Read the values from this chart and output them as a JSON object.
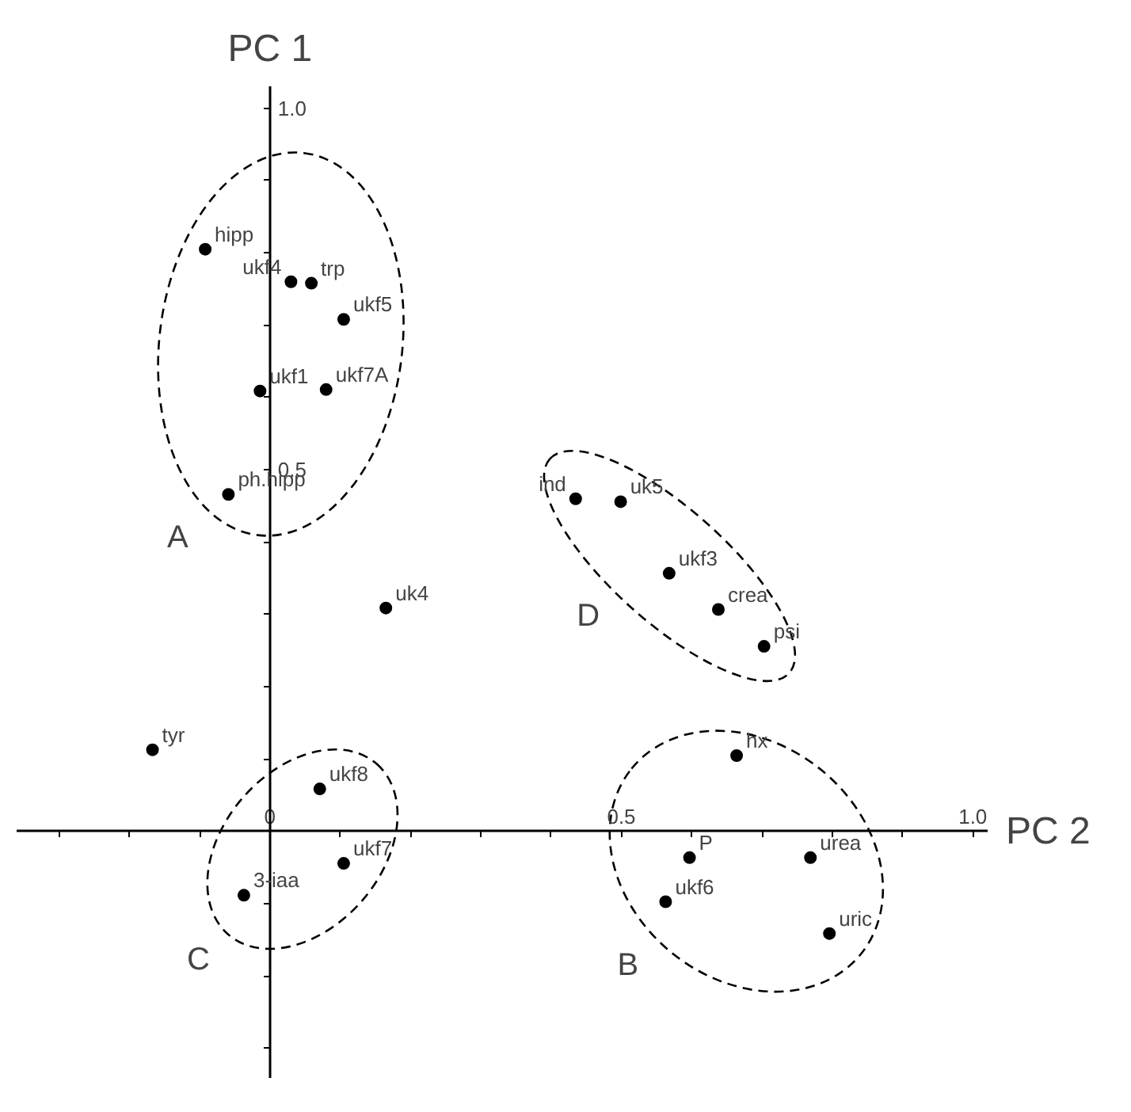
{
  "chart_data": {
    "type": "scatter",
    "xlabel": "PC 2",
    "ylabel": "PC 1",
    "marker": "circle",
    "xlim": [
      -0.36,
      1.02
    ],
    "ylim": [
      -0.34,
      1.03
    ],
    "xticks": [
      {
        "value": -0.3,
        "label": null
      },
      {
        "value": -0.2,
        "label": null
      },
      {
        "value": -0.1,
        "label": null
      },
      {
        "value": 0,
        "label": "0"
      },
      {
        "value": 0.1,
        "label": null
      },
      {
        "value": 0.2,
        "label": null
      },
      {
        "value": 0.3,
        "label": null
      },
      {
        "value": 0.4,
        "label": null
      },
      {
        "value": 0.5,
        "label": "0.5"
      },
      {
        "value": 0.6,
        "label": null
      },
      {
        "value": 0.7,
        "label": null
      },
      {
        "value": 0.8,
        "label": null
      },
      {
        "value": 0.9,
        "label": null
      },
      {
        "value": 1.0,
        "label": "1.0"
      }
    ],
    "yticks": [
      {
        "value": -0.3,
        "label": null
      },
      {
        "value": -0.2,
        "label": null
      },
      {
        "value": -0.1,
        "label": null
      },
      {
        "value": 0.1,
        "label": null
      },
      {
        "value": 0.2,
        "label": null
      },
      {
        "value": 0.3,
        "label": null
      },
      {
        "value": 0.4,
        "label": null
      },
      {
        "value": 0.5,
        "label": "0.5"
      },
      {
        "value": 0.6,
        "label": null
      },
      {
        "value": 0.7,
        "label": null
      },
      {
        "value": 0.8,
        "label": null
      },
      {
        "value": 0.9,
        "label": null
      },
      {
        "value": 1.0,
        "label": "1.0"
      }
    ],
    "grid": false,
    "series": [
      {
        "name": "A",
        "color": "#000000",
        "x": [
          -0.092,
          0.03,
          0.059,
          0.105,
          -0.014,
          0.08,
          -0.059
        ],
        "values": [
          0.805,
          0.76,
          0.758,
          0.708,
          0.609,
          0.611,
          0.466
        ]
      },
      {
        "name": "B",
        "color": "#000000",
        "x": [
          0.664,
          0.597,
          0.769,
          0.563,
          0.796
        ],
        "values": [
          0.105,
          -0.036,
          -0.036,
          -0.097,
          -0.141
        ]
      },
      {
        "name": "C",
        "color": "#000000",
        "x": [
          0.071,
          0.105,
          -0.037
        ],
        "values": [
          0.059,
          -0.044,
          -0.088
        ]
      },
      {
        "name": "D",
        "color": "#000000",
        "x": [
          0.435,
          0.499,
          0.568,
          0.638,
          0.703
        ],
        "values": [
          0.46,
          0.456,
          0.357,
          0.307,
          0.256
        ]
      },
      {
        "color": "#000000",
        "x": [
          0.165,
          -0.167
        ],
        "values": [
          0.309,
          0.113
        ]
      }
    ],
    "annotations": [
      {
        "text": "hipp",
        "x": -0.092,
        "y": 0.805
      },
      {
        "text": "ukf4",
        "x": 0.03,
        "y": 0.76
      },
      {
        "text": "trp",
        "x": 0.059,
        "y": 0.758
      },
      {
        "text": "ukf5",
        "x": 0.105,
        "y": 0.708
      },
      {
        "text": "ukf1",
        "x": -0.014,
        "y": 0.609
      },
      {
        "text": "ukf7A",
        "x": 0.08,
        "y": 0.611
      },
      {
        "text": "ph.hipp",
        "x": -0.059,
        "y": 0.466
      },
      {
        "text": "uk4",
        "x": 0.165,
        "y": 0.309
      },
      {
        "text": "tyr",
        "x": -0.167,
        "y": 0.113
      },
      {
        "text": "ukf8",
        "x": 0.071,
        "y": 0.059
      },
      {
        "text": "ukf7",
        "x": 0.105,
        "y": -0.044
      },
      {
        "text": "3-iaa",
        "x": -0.037,
        "y": -0.088
      },
      {
        "text": "ind",
        "x": 0.435,
        "y": 0.46
      },
      {
        "text": "uk5",
        "x": 0.499,
        "y": 0.456
      },
      {
        "text": "ukf3",
        "x": 0.568,
        "y": 0.357
      },
      {
        "text": "crea",
        "x": 0.638,
        "y": 0.307
      },
      {
        "text": "psi",
        "x": 0.703,
        "y": 0.256
      },
      {
        "text": "hx",
        "x": 0.664,
        "y": 0.105
      },
      {
        "text": "P",
        "x": 0.597,
        "y": -0.036
      },
      {
        "text": "urea",
        "x": 0.769,
        "y": -0.036
      },
      {
        "text": "ukf6",
        "x": 0.563,
        "y": -0.097
      },
      {
        "text": "uric",
        "x": 0.796,
        "y": -0.141
      }
    ]
  }
}
